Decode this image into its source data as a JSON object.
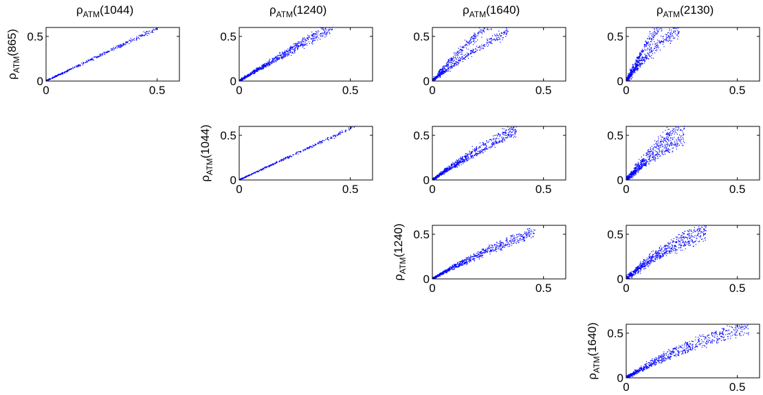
{
  "figure": {
    "columns": [
      {
        "var": "ATM",
        "band": "(1044)"
      },
      {
        "var": "ATM",
        "band": "(1240)"
      },
      {
        "var": "ATM",
        "band": "(1640)"
      },
      {
        "var": "ATM",
        "band": "(2130)"
      }
    ],
    "rows": [
      {
        "var": "ATM",
        "band": "(865)"
      },
      {
        "var": "ATM",
        "band": "(1044)"
      },
      {
        "var": "ATM",
        "band": "(1240)"
      },
      {
        "var": "ATM",
        "band": "(1640)"
      }
    ],
    "rho": "ρ",
    "point_color": "#0000ff"
  },
  "chart_data": [
    {
      "type": "scatter",
      "row": 0,
      "col": 0,
      "xlim": [
        0,
        0.6
      ],
      "ylim": [
        0,
        0.6
      ],
      "xticks": [
        0,
        0.5
      ],
      "yticks": [
        0,
        0.5
      ],
      "xtick_labels": [
        "0",
        "0.5"
      ],
      "ytick_labels": [
        "0",
        "0.5"
      ],
      "grid": false,
      "branches": [
        {
          "slope": 1.18,
          "curv": 0,
          "spread": 0.012
        }
      ],
      "x_end": 0.5
    },
    {
      "type": "scatter",
      "row": 0,
      "col": 1,
      "xlim": [
        0,
        0.6
      ],
      "ylim": [
        0,
        0.6
      ],
      "xticks": [
        0,
        0.5
      ],
      "yticks": [
        0,
        0.5
      ],
      "xtick_labels": [
        "0",
        "0.5"
      ],
      "ytick_labels": [
        "0",
        "0.5"
      ],
      "grid": false,
      "branches": [
        {
          "slope": 1.62,
          "curv": 0.2,
          "spread": 0.02
        },
        {
          "slope": 1.42,
          "curv": 0.1,
          "spread": 0.02
        }
      ],
      "x_end": 0.42
    },
    {
      "type": "scatter",
      "row": 0,
      "col": 2,
      "xlim": [
        0,
        0.6
      ],
      "ylim": [
        0,
        0.6
      ],
      "xticks": [
        0,
        0.5
      ],
      "yticks": [
        0,
        0.5
      ],
      "xtick_labels": [
        "0",
        "0.5"
      ],
      "ytick_labels": [
        "0",
        "0.5"
      ],
      "grid": false,
      "branches": [
        {
          "slope": 3.0,
          "curv": 2.1,
          "spread": 0.04
        },
        {
          "slope": 2.0,
          "curv": 1.2,
          "spread": 0.03
        }
      ],
      "x_end": 0.34
    },
    {
      "type": "scatter",
      "row": 0,
      "col": 3,
      "xlim": [
        0,
        0.6
      ],
      "ylim": [
        0,
        0.6
      ],
      "xticks": [
        0,
        0.5
      ],
      "yticks": [
        0,
        0.5
      ],
      "xtick_labels": [
        "0",
        "0.5"
      ],
      "ytick_labels": [
        "0",
        "0.5"
      ],
      "grid": false,
      "branches": [
        {
          "slope": 5.0,
          "curv": 6.0,
          "spread": 0.06
        },
        {
          "slope": 3.4,
          "curv": 4.0,
          "spread": 0.05
        }
      ],
      "x_end": 0.24
    },
    {
      "type": "scatter",
      "row": 1,
      "col": 1,
      "xlim": [
        0,
        0.6
      ],
      "ylim": [
        0,
        0.6
      ],
      "xticks": [
        0,
        0.5
      ],
      "yticks": [
        0,
        0.5
      ],
      "xtick_labels": [
        "0",
        "0.5"
      ],
      "ytick_labels": [
        "0",
        "0.5"
      ],
      "grid": false,
      "branches": [
        {
          "slope": 1.15,
          "curv": 0,
          "spread": 0.01
        }
      ],
      "x_end": 0.52
    },
    {
      "type": "scatter",
      "row": 1,
      "col": 2,
      "xlim": [
        0,
        0.6
      ],
      "ylim": [
        0,
        0.6
      ],
      "xticks": [
        0,
        0.5
      ],
      "yticks": [
        0,
        0.5
      ],
      "xtick_labels": [
        "0",
        "0.5"
      ],
      "ytick_labels": [
        "0",
        "0.5"
      ],
      "grid": false,
      "branches": [
        {
          "slope": 1.9,
          "curv": 0.8,
          "spread": 0.025
        },
        {
          "slope": 1.55,
          "curv": 0.4,
          "spread": 0.02
        }
      ],
      "x_end": 0.38
    },
    {
      "type": "scatter",
      "row": 1,
      "col": 3,
      "xlim": [
        0,
        0.6
      ],
      "ylim": [
        0,
        0.6
      ],
      "xticks": [
        0,
        0.5
      ],
      "yticks": [
        0,
        0.5
      ],
      "xtick_labels": [
        "0",
        "0.5"
      ],
      "ytick_labels": [
        "0",
        "0.5"
      ],
      "grid": false,
      "branches": [
        {
          "slope": 3.2,
          "curv": 3.2,
          "spread": 0.05
        },
        {
          "slope": 2.3,
          "curv": 2.0,
          "spread": 0.04
        }
      ],
      "x_end": 0.26
    },
    {
      "type": "scatter",
      "row": 2,
      "col": 2,
      "xlim": [
        0,
        0.6
      ],
      "ylim": [
        0,
        0.6
      ],
      "xticks": [
        0,
        0.5
      ],
      "yticks": [
        0,
        0.5
      ],
      "xtick_labels": [
        "0",
        "0.5"
      ],
      "ytick_labels": [
        "0",
        "0.5"
      ],
      "grid": false,
      "branches": [
        {
          "slope": 1.55,
          "curv": 0.8,
          "spread": 0.02
        },
        {
          "slope": 1.3,
          "curv": 0.5,
          "spread": 0.02
        }
      ],
      "x_end": 0.46
    },
    {
      "type": "scatter",
      "row": 2,
      "col": 3,
      "xlim": [
        0,
        0.6
      ],
      "ylim": [
        0,
        0.6
      ],
      "xticks": [
        0,
        0.5
      ],
      "yticks": [
        0,
        0.5
      ],
      "xtick_labels": [
        "0",
        "0.5"
      ],
      "ytick_labels": [
        "0",
        "0.5"
      ],
      "grid": false,
      "branches": [
        {
          "slope": 2.5,
          "curv": 2.6,
          "spread": 0.04
        },
        {
          "slope": 1.9,
          "curv": 1.6,
          "spread": 0.035
        }
      ],
      "x_end": 0.36
    },
    {
      "type": "scatter",
      "row": 3,
      "col": 3,
      "xlim": [
        0,
        0.6
      ],
      "ylim": [
        0,
        0.6
      ],
      "xticks": [
        0,
        0.5
      ],
      "yticks": [
        0,
        0.5
      ],
      "xtick_labels": [
        "0",
        "0.5"
      ],
      "ytick_labels": [
        "0",
        "0.5"
      ],
      "grid": false,
      "branches": [
        {
          "slope": 1.65,
          "curv": 1.0,
          "spread": 0.03
        },
        {
          "slope": 1.3,
          "curv": 0.6,
          "spread": 0.025
        }
      ],
      "x_end": 0.55
    }
  ]
}
